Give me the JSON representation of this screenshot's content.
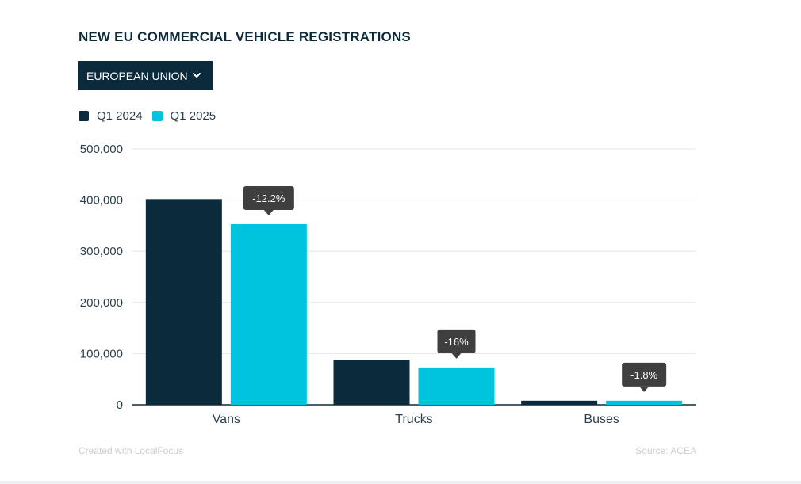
{
  "title": "NEW EU COMMERCIAL VEHICLE REGISTRATIONS",
  "dropdown": {
    "label": "EUROPEAN UNION",
    "icon": "chevron-down-icon"
  },
  "footer": {
    "credit": "Created with LocalFocus",
    "source": "Source: ACEA"
  },
  "colors": {
    "q1_2024": "#0b2b3c",
    "q1_2025": "#00c3de",
    "badge": "#3f3f3f"
  },
  "chart_data": {
    "type": "bar",
    "title": "NEW EU COMMERCIAL VEHICLE REGISTRATIONS",
    "categories": [
      "Vans",
      "Trucks",
      "Buses"
    ],
    "series": [
      {
        "name": "Q1 2024",
        "values": [
          402000,
          88000,
          8000
        ]
      },
      {
        "name": "Q1 2025",
        "values": [
          353000,
          73000,
          8000
        ]
      }
    ],
    "changes": [
      "-12.2%",
      "-16%",
      "-1.8%"
    ],
    "yticks": [
      0,
      100000,
      200000,
      300000,
      400000,
      500000
    ],
    "ytick_labels": [
      "0",
      "100,000",
      "200,000",
      "300,000",
      "400,000",
      "500,000"
    ],
    "ylim": [
      0,
      500000
    ],
    "xlabel": "",
    "ylabel": "",
    "grid": true,
    "legend": "top-left"
  }
}
